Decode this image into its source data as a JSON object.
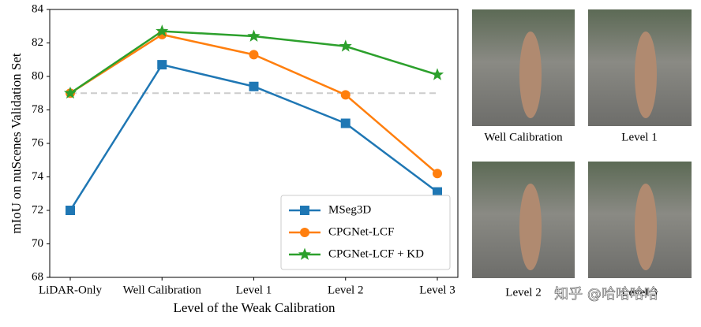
{
  "chart_data": {
    "type": "line",
    "x_label": "Level of the Weak Calibration",
    "y_label": "mIoU on nuScenes Validation Set",
    "categories": [
      "LiDAR-Only",
      "Well Calibration",
      "Level 1",
      "Level 2",
      "Level 3"
    ],
    "series": [
      {
        "name": "MSeg3D",
        "color": "#1f77b4",
        "marker": "square",
        "values": [
          72.0,
          80.7,
          79.4,
          77.2,
          73.1
        ]
      },
      {
        "name": "CPGNet-LCF",
        "color": "#ff7f0e",
        "marker": "circle",
        "values": [
          79.0,
          82.5,
          81.3,
          78.9,
          74.2
        ]
      },
      {
        "name": "CPGNet-LCF + KD",
        "color": "#2ca02c",
        "marker": "star",
        "values": [
          79.0,
          82.7,
          82.4,
          81.8,
          80.1
        ]
      }
    ],
    "reference_line": 79,
    "ylim": [
      68,
      84
    ],
    "yticks": [
      68,
      70,
      72,
      74,
      76,
      78,
      80,
      82,
      84
    ],
    "legend": "lower right",
    "grid": false
  },
  "images": [
    {
      "caption": "Well Calibration"
    },
    {
      "caption": "Level 1"
    },
    {
      "caption": "Level 2"
    },
    {
      "caption": "Level 3"
    }
  ],
  "watermark": "知乎 @哈哈哈哈"
}
